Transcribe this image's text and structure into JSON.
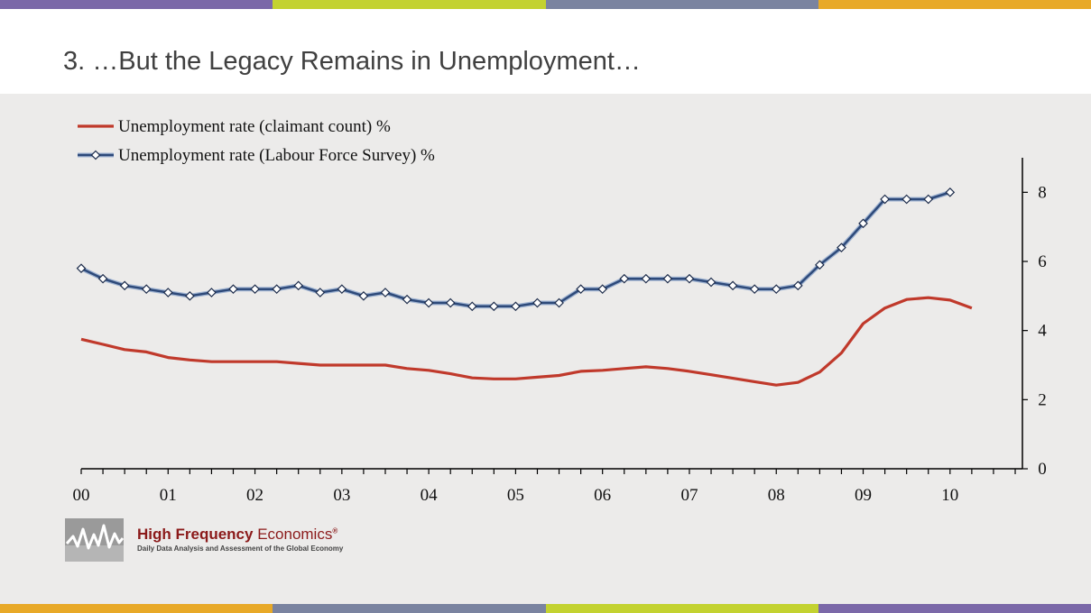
{
  "slide": {
    "title": "3. …But the Legacy Remains in Unemployment…",
    "stripe_colors": [
      "#7b68a8",
      "#c3d230",
      "#7a83a0",
      "#e8a928"
    ],
    "bottom_stripe_colors": [
      "#e8a928",
      "#7a83a0",
      "#c3d230",
      "#7b68a8"
    ],
    "background": "#ecebea"
  },
  "logo": {
    "name_bold": "High Frequency",
    "name_rest": " Economics",
    "mark": "®",
    "tagline": "Daily Data Analysis and Assessment of the Global Economy",
    "icon": "waveform-logo-icon",
    "color": "#8b1a1a"
  },
  "chart_data": {
    "type": "line",
    "title": "",
    "xlabel": "",
    "ylabel": "",
    "ylim": [
      0,
      9
    ],
    "xlim": [
      2000,
      2010.833
    ],
    "y_axis_side": "right",
    "y_ticks": [
      "0",
      "2",
      "4",
      "6",
      "8"
    ],
    "x_tick_labels": [
      "00",
      "01",
      "02",
      "03",
      "04",
      "05",
      "06",
      "07",
      "08",
      "09",
      "10"
    ],
    "legend_position": "top-left",
    "grid": false,
    "series": [
      {
        "name": "Unemployment rate (claimant count) %",
        "color": "#c0392b",
        "marker": "none",
        "x": [
          2000.0,
          2000.25,
          2000.5,
          2000.75,
          2001.0,
          2001.25,
          2001.5,
          2001.75,
          2002.0,
          2002.25,
          2002.5,
          2002.75,
          2003.0,
          2003.25,
          2003.5,
          2003.75,
          2004.0,
          2004.25,
          2004.5,
          2004.75,
          2005.0,
          2005.25,
          2005.5,
          2005.75,
          2006.0,
          2006.25,
          2006.5,
          2006.75,
          2007.0,
          2007.25,
          2007.5,
          2007.75,
          2008.0,
          2008.25,
          2008.5,
          2008.75,
          2009.0,
          2009.25,
          2009.5,
          2009.75,
          2010.0,
          2010.25
        ],
        "values": [
          3.75,
          3.6,
          3.45,
          3.38,
          3.22,
          3.15,
          3.1,
          3.1,
          3.1,
          3.1,
          3.05,
          3.0,
          3.0,
          3.0,
          3.0,
          2.9,
          2.85,
          2.75,
          2.63,
          2.6,
          2.6,
          2.65,
          2.7,
          2.82,
          2.85,
          2.9,
          2.95,
          2.9,
          2.82,
          2.72,
          2.62,
          2.52,
          2.42,
          2.5,
          2.8,
          3.35,
          4.2,
          4.65,
          4.9,
          4.95,
          4.88,
          4.65
        ]
      },
      {
        "name": "Unemployment rate (Labour Force Survey) %",
        "color": "#2e4a7a",
        "marker": "diamond",
        "x": [
          2000.0,
          2000.25,
          2000.5,
          2000.75,
          2001.0,
          2001.25,
          2001.5,
          2001.75,
          2002.0,
          2002.25,
          2002.5,
          2002.75,
          2003.0,
          2003.25,
          2003.5,
          2003.75,
          2004.0,
          2004.25,
          2004.5,
          2004.75,
          2005.0,
          2005.25,
          2005.5,
          2005.75,
          2006.0,
          2006.25,
          2006.5,
          2006.75,
          2007.0,
          2007.25,
          2007.5,
          2007.75,
          2008.0,
          2008.25,
          2008.5,
          2008.75,
          2009.0,
          2009.25,
          2009.5,
          2009.75,
          2010.0
        ],
        "values": [
          5.8,
          5.5,
          5.3,
          5.2,
          5.1,
          5.0,
          5.1,
          5.2,
          5.2,
          5.2,
          5.3,
          5.1,
          5.2,
          5.0,
          5.1,
          4.9,
          4.8,
          4.8,
          4.7,
          4.7,
          4.7,
          4.8,
          4.8,
          5.2,
          5.2,
          5.5,
          5.5,
          5.5,
          5.5,
          5.4,
          5.3,
          5.2,
          5.2,
          5.3,
          5.9,
          6.4,
          7.1,
          7.8,
          7.8,
          7.8,
          8.0
        ]
      }
    ]
  }
}
